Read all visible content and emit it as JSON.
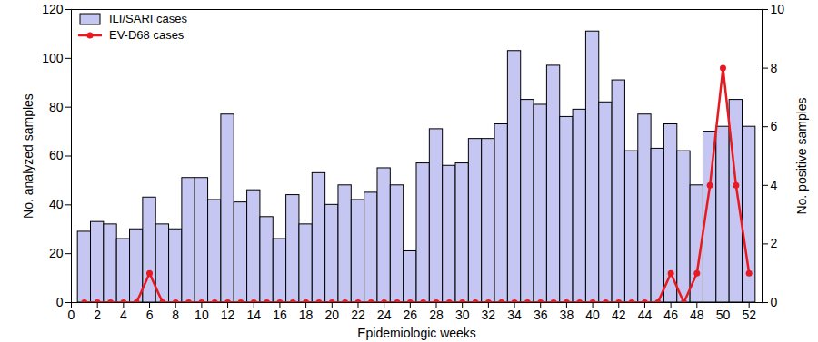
{
  "chart_data": {
    "type": "bar",
    "x": [
      1,
      2,
      3,
      4,
      5,
      6,
      7,
      8,
      9,
      10,
      11,
      12,
      13,
      14,
      15,
      16,
      17,
      18,
      19,
      20,
      21,
      22,
      23,
      24,
      25,
      26,
      27,
      28,
      29,
      30,
      31,
      32,
      33,
      34,
      35,
      36,
      37,
      38,
      39,
      40,
      41,
      42,
      43,
      44,
      45,
      46,
      47,
      48,
      49,
      50,
      51,
      52
    ],
    "series": [
      {
        "name": "ILI/SARI cases",
        "type": "bar",
        "color": "#c5c6f2",
        "values": [
          29,
          33,
          32,
          26,
          30,
          43,
          32,
          30,
          51,
          51,
          42,
          77,
          41,
          46,
          35,
          26,
          44,
          32,
          53,
          40,
          48,
          42,
          45,
          55,
          48,
          21,
          57,
          71,
          56,
          57,
          67,
          67,
          73,
          103,
          83,
          81,
          97,
          76,
          79,
          111,
          82,
          91,
          62,
          77,
          63,
          73,
          62,
          48,
          70,
          72,
          83,
          72
        ]
      },
      {
        "name": "EV-D68 cases",
        "type": "line",
        "axis": "y2",
        "color": "#e8191f",
        "marker": "circle",
        "values": [
          0,
          0,
          0,
          0,
          0,
          1,
          0,
          0,
          0,
          0,
          0,
          0,
          0,
          0,
          0,
          0,
          0,
          0,
          0,
          0,
          0,
          0,
          0,
          0,
          0,
          0,
          0,
          0,
          0,
          0,
          0,
          0,
          0,
          0,
          0,
          0,
          0,
          0,
          0,
          0,
          0,
          0,
          0,
          0,
          0,
          1,
          0,
          1,
          4,
          8,
          4,
          1
        ]
      }
    ],
    "x_label": "Epidemiologic weeks",
    "y_label": "No. analyzed samples",
    "y2_label": "No. positive samples",
    "xlim": [
      0,
      53
    ],
    "xticks": [
      0,
      2,
      4,
      6,
      8,
      10,
      12,
      14,
      16,
      18,
      20,
      22,
      24,
      26,
      28,
      30,
      32,
      34,
      36,
      38,
      40,
      42,
      44,
      46,
      48,
      50,
      52
    ],
    "ylim": [
      0,
      120
    ],
    "yticks": [
      0,
      20,
      40,
      60,
      80,
      100,
      120
    ],
    "y2lim": [
      0,
      10
    ],
    "y2ticks": [
      0,
      2,
      4,
      6,
      8,
      10
    ],
    "legend": "upper left"
  }
}
